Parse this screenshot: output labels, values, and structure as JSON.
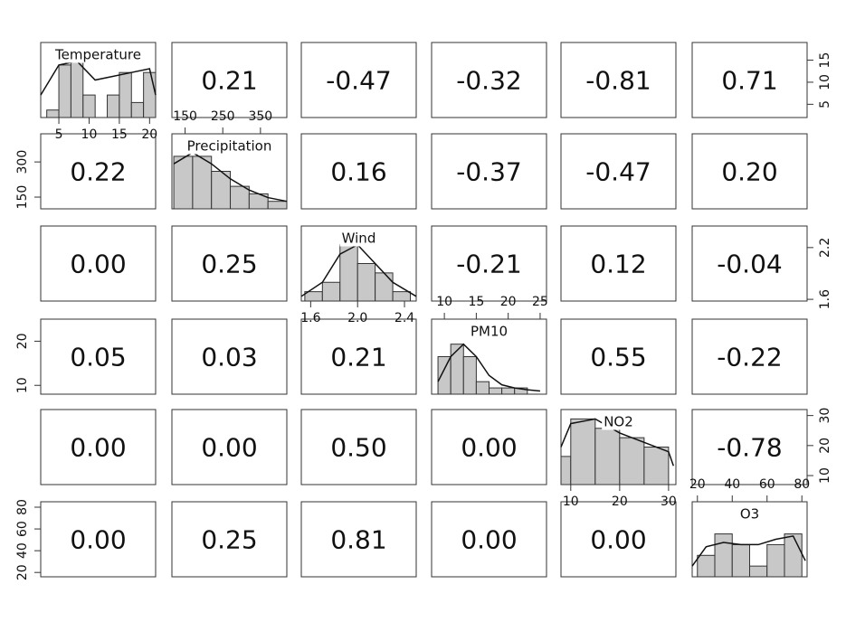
{
  "chart_data": {
    "type": "pairs",
    "variables": [
      {
        "name": "Temperature",
        "xlim": [
          2,
          21
        ],
        "bins": [
          3,
          5,
          7,
          9,
          11,
          13,
          15,
          17,
          19,
          21
        ],
        "counts": [
          1,
          7,
          8,
          3,
          0,
          3,
          6,
          2,
          6
        ],
        "ylim": [
          0,
          10
        ],
        "density_x": [
          2,
          5,
          8,
          11,
          14,
          17,
          20,
          21
        ],
        "density_y": [
          3,
          7,
          7.5,
          5,
          5.5,
          6,
          6.5,
          3
        ]
      },
      {
        "name": "Precipitation",
        "xlim": [
          115,
          420
        ],
        "bins": [
          120,
          170,
          220,
          270,
          320,
          370,
          420
        ],
        "counts": [
          7,
          7,
          5,
          3,
          2,
          1
        ],
        "ylim": [
          0,
          10
        ],
        "density_x": [
          120,
          170,
          220,
          270,
          320,
          370,
          420
        ],
        "density_y": [
          6,
          7.5,
          6,
          4,
          2.5,
          1.5,
          1
        ]
      },
      {
        "name": "Wind",
        "xlim": [
          1.52,
          2.5
        ],
        "bins": [
          1.55,
          1.7,
          1.85,
          2.0,
          2.15,
          2.3,
          2.45
        ],
        "counts": [
          1,
          2,
          6,
          4,
          3,
          1
        ],
        "ylim": [
          0,
          8
        ],
        "density_x": [
          1.52,
          1.7,
          1.85,
          2.0,
          2.15,
          2.3,
          2.5
        ],
        "density_y": [
          0.5,
          2,
          5,
          6,
          4,
          2,
          0.5
        ]
      },
      {
        "name": "PM10",
        "xlim": [
          8,
          26
        ],
        "bins": [
          9,
          11,
          13,
          15,
          17,
          19,
          21,
          23,
          25
        ],
        "counts": [
          6,
          8,
          6,
          2,
          1,
          1,
          1,
          0
        ],
        "ylim": [
          0,
          12
        ],
        "density_x": [
          9,
          11,
          13,
          15,
          17,
          19,
          21,
          23,
          25
        ],
        "density_y": [
          2,
          6,
          8,
          6,
          3,
          1.5,
          1,
          0.7,
          0.5
        ]
      },
      {
        "name": "NO2",
        "xlim": [
          8,
          31.5
        ],
        "bins": [
          8,
          10,
          15,
          20,
          25,
          30
        ],
        "counts": [
          3,
          7,
          6,
          5,
          4
        ],
        "ylim": [
          0,
          8
        ],
        "density_x": [
          8,
          10,
          15,
          20,
          25,
          30,
          31
        ],
        "density_y": [
          4,
          6.5,
          7,
          5.5,
          4.5,
          3.5,
          2
        ]
      },
      {
        "name": "O3",
        "xlim": [
          17,
          83
        ],
        "bins": [
          20,
          30,
          40,
          50,
          60,
          70,
          80
        ],
        "counts": [
          2,
          4,
          3,
          1,
          3,
          4
        ],
        "ylim": [
          0,
          7
        ],
        "density_x": [
          17,
          25,
          35,
          45,
          55,
          65,
          75,
          82
        ],
        "density_y": [
          1,
          2.8,
          3.2,
          3,
          3,
          3.5,
          3.8,
          1.5
        ]
      }
    ],
    "correlations": {
      "values": [
        [
          null,
          0.21,
          -0.47,
          -0.32,
          -0.81,
          0.71
        ],
        [
          0.22,
          null,
          0.16,
          -0.37,
          -0.47,
          0.2
        ],
        [
          0,
          0.25,
          null,
          -0.21,
          0.12,
          -0.04
        ],
        [
          0.05,
          0.03,
          0.21,
          null,
          0.55,
          -0.22
        ],
        [
          0,
          0,
          0.5,
          0,
          null,
          -0.78
        ],
        [
          0,
          0.25,
          0.81,
          0,
          0,
          null
        ]
      ],
      "value_labels": [
        [
          null,
          "0.21",
          "-0.47",
          "-0.32",
          "-0.81",
          "0.71"
        ],
        [
          "0.22",
          null,
          "0.16",
          "-0.37",
          "-0.47",
          "0.20"
        ],
        [
          "0.00",
          "0.25",
          null,
          "-0.21",
          "0.12",
          "-0.04"
        ],
        [
          "0.05",
          "0.03",
          "0.21",
          null,
          "0.55",
          "-0.22"
        ],
        [
          "0.00",
          "0.00",
          "0.50",
          "0.00",
          null,
          "-0.78"
        ],
        [
          "0.00",
          "0.25",
          "0.81",
          "0.00",
          "0.00",
          null
        ]
      ]
    },
    "axes": [
      {
        "side": "top",
        "panel": 1,
        "lim": [
          115,
          420
        ],
        "ticks": [
          150,
          250,
          350
        ]
      },
      {
        "side": "top",
        "panel": 3,
        "lim": [
          8,
          26
        ],
        "ticks": [
          10,
          15,
          20,
          25
        ]
      },
      {
        "side": "top",
        "panel": 5,
        "lim": [
          17,
          83
        ],
        "ticks": [
          20,
          40,
          60,
          80
        ]
      },
      {
        "side": "bottom",
        "panel": 0,
        "lim": [
          2,
          21
        ],
        "ticks": [
          5,
          10,
          15,
          20
        ]
      },
      {
        "side": "bottom",
        "panel": 2,
        "lim": [
          1.52,
          2.5
        ],
        "ticks": [
          1.6,
          {
            "value": 2,
            "label": "2.0"
          },
          2.4
        ]
      },
      {
        "side": "bottom",
        "panel": 4,
        "lim": [
          8,
          31.5
        ],
        "ticks": [
          10,
          20,
          30
        ]
      },
      {
        "side": "right",
        "panel": 0,
        "lim": [
          2,
          19
        ],
        "ticks": [
          5,
          10,
          15
        ]
      },
      {
        "side": "left",
        "panel": 1,
        "lim": [
          100,
          420
        ],
        "ticks": [
          150,
          300
        ]
      },
      {
        "side": "right",
        "panel": 2,
        "lim": [
          1.58,
          2.45
        ],
        "ticks": [
          1.6,
          2.2
        ]
      },
      {
        "side": "left",
        "panel": 3,
        "lim": [
          8,
          25
        ],
        "ticks": [
          10,
          20
        ]
      },
      {
        "side": "right",
        "panel": 4,
        "lim": [
          7,
          32
        ],
        "ticks": [
          10,
          20,
          30
        ]
      },
      {
        "side": "left",
        "panel": 5,
        "lim": [
          16,
          85
        ],
        "ticks": [
          20,
          40,
          60,
          80
        ]
      }
    ]
  }
}
